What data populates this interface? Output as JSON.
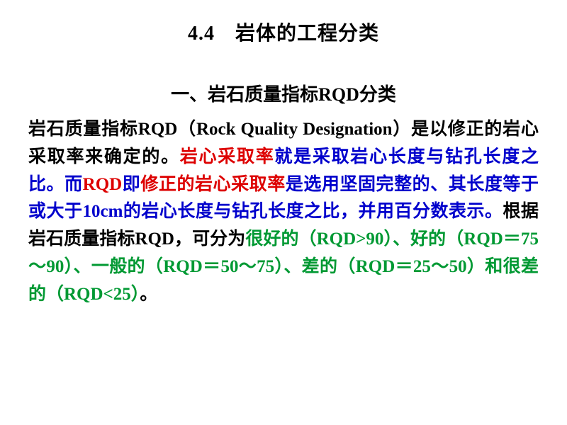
{
  "colors": {
    "black": "#000000",
    "blue": "#0000cc",
    "red": "#dd0000",
    "green": "#009933",
    "background": "#ffffff"
  },
  "typography": {
    "title_fontsize": 28,
    "subtitle_fontsize": 26,
    "body_fontsize": 25,
    "font_family": "SimSun",
    "font_weight": "bold",
    "line_height": 1.55,
    "body_align": "justify"
  },
  "title": "4.4　岩体的工程分类",
  "subtitle": "一、岩石质量指标RQD分类",
  "segments": {
    "s1": "岩石质量指标RQD（Rock Quality Designation）是以修正的岩心采取率来确定的。",
    "s2": "岩心采取率",
    "s3": "就是采取岩心长度与钻孔长度之比。而",
    "s4": "RQD",
    "s5": "即",
    "s6": "修正的岩心采取率",
    "s7": "是选用坚固完整的、其长度等于或大于10cm的岩心长度与钻孔长度之比，并用百分数表示。",
    "s8": "根据岩石质量指标RQD，可分为",
    "s9": "很好的（RQD>90）、好的（RQD＝75～90）、一般的（RQD＝50～75）、差的（RQD＝25～50）和很差的（RQD<25）",
    "s10": "。"
  }
}
